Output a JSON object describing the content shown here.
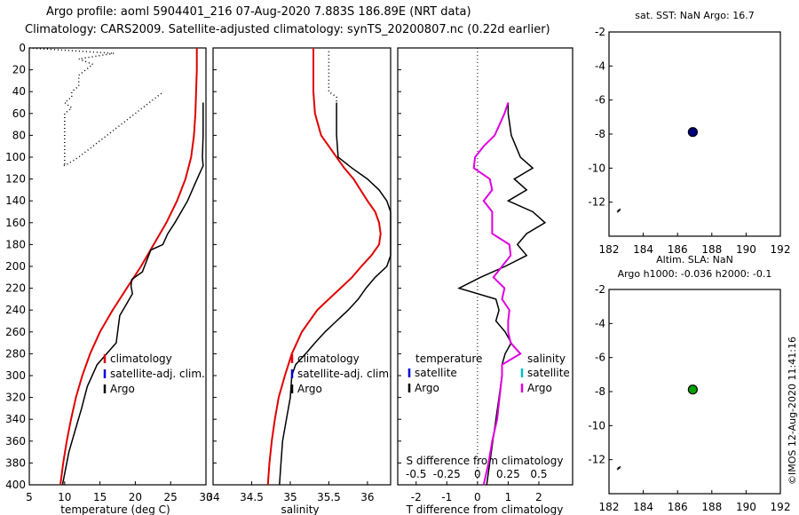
{
  "header": {
    "title_line1": "Argo profile: aoml 5904401_216 07-Aug-2020 7.883S 186.89E (NRT data)",
    "title_line2": "Climatology: CARS2009. Satellite-adjusted climatology: synTS_20200807.nc (0.22d earlier)"
  },
  "side_stamp": "©IMOS 12-Aug-2020 11:41:16",
  "colors": {
    "climatology": "#e00000",
    "satellite": "#0000e0",
    "argo": "#000000",
    "salinity": "#e000e0",
    "salinity_sat": "#00c0c0",
    "sst_dot": "#000080",
    "sla_dot": "#00a000"
  },
  "chart_data": [
    {
      "type": "line",
      "id": "temperature",
      "xlabel": "temperature (deg C)",
      "xlim": [
        5,
        30
      ],
      "xticks": [
        "5",
        "10",
        "15",
        "20",
        "25",
        "30"
      ],
      "ylim": [
        0,
        400
      ],
      "yticks": [
        "0",
        "20",
        "40",
        "60",
        "80",
        "100",
        "120",
        "140",
        "160",
        "180",
        "200",
        "220",
        "240",
        "260",
        "280",
        "300",
        "320",
        "340",
        "360",
        "380",
        "400"
      ],
      "legend": [
        "climatology",
        "satellite-adj. clim.",
        "Argo"
      ],
      "series": [
        {
          "name": "climatology",
          "depth": [
            0,
            20,
            40,
            60,
            80,
            100,
            120,
            140,
            160,
            180,
            200,
            220,
            240,
            260,
            280,
            300,
            320,
            340,
            360,
            380,
            400
          ],
          "values": [
            28.7,
            28.7,
            28.6,
            28.5,
            28.3,
            27.9,
            27.1,
            25.9,
            24.4,
            22.6,
            20.8,
            18.8,
            16.8,
            15.0,
            13.6,
            12.5,
            11.6,
            10.9,
            10.3,
            9.8,
            9.4
          ]
        },
        {
          "name": "Argo",
          "depth": [
            50,
            60,
            80,
            100,
            108,
            115,
            125,
            140,
            160,
            170,
            180,
            185,
            195,
            205,
            212,
            218,
            225,
            235,
            245,
            255,
            270,
            290,
            310,
            330,
            350,
            370,
            390,
            400
          ],
          "values": [
            29.6,
            29.6,
            29.6,
            29.5,
            29.6,
            29.1,
            28.4,
            27.4,
            25.6,
            24.6,
            23.9,
            22.2,
            21.6,
            21.0,
            19.5,
            19.4,
            19.6,
            18.7,
            17.8,
            17.6,
            17.3,
            14.6,
            13.2,
            12.4,
            11.5,
            10.6,
            10.0,
            9.7
          ]
        },
        {
          "name": "dotted",
          "depth": [
            0,
            5,
            10,
            15,
            20,
            25,
            30,
            35,
            40,
            45,
            50,
            55,
            60,
            70,
            80,
            90,
            100,
            106,
            108,
            106,
            100,
            90,
            80,
            70,
            60,
            50,
            40
          ],
          "values": [
            5,
            17,
            12,
            14,
            13,
            12,
            12,
            12,
            11,
            11,
            10,
            11,
            10,
            10,
            10,
            10,
            10,
            10,
            9.8,
            10.5,
            12,
            14,
            16,
            18,
            20,
            22,
            24
          ]
        }
      ]
    },
    {
      "type": "line",
      "id": "salinity",
      "xlabel": "salinity",
      "xlim": [
        34,
        36.3
      ],
      "xticks": [
        "34",
        "34.5",
        "35",
        "35.5",
        "36"
      ],
      "ylim": [
        0,
        400
      ],
      "legend": [
        "climatology",
        "satellite-adj. clim.",
        "Argo"
      ],
      "series": [
        {
          "name": "climatology",
          "depth": [
            0,
            20,
            40,
            60,
            80,
            90,
            100,
            110,
            120,
            140,
            150,
            160,
            170,
            180,
            190,
            200,
            210,
            220,
            230,
            240,
            260,
            280,
            300,
            320,
            340,
            360,
            380,
            400
          ],
          "values": [
            35.3,
            35.3,
            35.3,
            35.32,
            35.4,
            35.5,
            35.6,
            35.7,
            35.82,
            36.0,
            36.1,
            36.15,
            36.17,
            36.15,
            36.05,
            35.92,
            35.8,
            35.65,
            35.5,
            35.35,
            35.15,
            35.02,
            34.93,
            34.85,
            34.8,
            34.76,
            34.73,
            34.71
          ]
        },
        {
          "name": "Argo",
          "depth": [
            50,
            60,
            80,
            100,
            110,
            120,
            130,
            140,
            150,
            160,
            170,
            180,
            190,
            200,
            210,
            220,
            230,
            240,
            250,
            260,
            270,
            280,
            290,
            300,
            320,
            340,
            360,
            380,
            400
          ],
          "values": [
            35.6,
            35.6,
            35.6,
            35.62,
            35.8,
            36.0,
            36.15,
            36.25,
            36.3,
            36.3,
            36.3,
            36.3,
            36.3,
            36.25,
            36.1,
            35.98,
            35.88,
            35.75,
            35.6,
            35.45,
            35.32,
            35.2,
            35.07,
            35.02,
            35.0,
            34.95,
            34.9,
            34.88,
            34.86
          ]
        },
        {
          "name": "dotted",
          "depth": [
            3,
            40,
            45,
            50
          ],
          "values": [
            35.5,
            35.5,
            35.6,
            35.6
          ]
        }
      ]
    },
    {
      "type": "line",
      "id": "difference",
      "xlabel": "T difference from climatology",
      "xlim": [
        -2.6,
        3.1
      ],
      "xticks": [
        "-2",
        "-1",
        "0",
        "1",
        "2"
      ],
      "xlabel_top": "S difference from climatology",
      "xticks_top": [
        "-0.5",
        "-0.25",
        "0",
        "0.25",
        "0.5"
      ],
      "ylim": [
        0,
        400
      ],
      "legend_left": {
        "title": "temperature",
        "items": [
          "satellite",
          "Argo"
        ]
      },
      "legend_right": {
        "title": "salinity",
        "items": [
          "satellite",
          "Argo"
        ]
      },
      "series": [
        {
          "name": "T Argo",
          "depth": [
            50,
            60,
            80,
            100,
            110,
            120,
            130,
            140,
            150,
            160,
            170,
            180,
            190,
            200,
            210,
            220,
            230,
            240,
            250,
            260,
            270,
            280,
            290,
            300,
            320,
            340,
            360,
            380,
            400
          ],
          "values": [
            1.0,
            1.0,
            1.1,
            1.4,
            1.8,
            1.2,
            1.6,
            1.0,
            1.8,
            2.2,
            1.6,
            1.3,
            1.6,
            0.9,
            0.1,
            -0.6,
            0.6,
            0.7,
            0.6,
            0.9,
            1.1,
            0.9,
            0.8,
            0.8,
            0.7,
            0.6,
            0.5,
            0.4,
            0.3
          ]
        },
        {
          "name": "S Argo",
          "depth": [
            50,
            60,
            80,
            90,
            100,
            110,
            120,
            130,
            140,
            150,
            160,
            170,
            180,
            190,
            200,
            210,
            220,
            230,
            240,
            250,
            260,
            270,
            280,
            290,
            300,
            320,
            340,
            360,
            380,
            400
          ],
          "values": [
            0.25,
            0.22,
            0.14,
            0.05,
            -0.02,
            -0.03,
            0.1,
            0.12,
            0.05,
            0.12,
            0.12,
            0.12,
            0.26,
            0.27,
            0.2,
            0.13,
            0.22,
            0.2,
            0.26,
            0.25,
            0.25,
            0.27,
            0.35,
            0.2,
            0.2,
            0.18,
            0.16,
            0.12,
            0.09,
            0.05
          ]
        }
      ]
    },
    {
      "type": "scatter",
      "id": "sst",
      "title": "sat. SST: NaN Argo: 16.7",
      "xlim": [
        182,
        192
      ],
      "ylim": [
        -14,
        -2
      ],
      "xticks": [
        "182",
        "184",
        "186",
        "188",
        "190",
        "192"
      ],
      "yticks": [
        "-2",
        "-4",
        "-6",
        "-8",
        "-10",
        "-12"
      ],
      "points": [
        {
          "x": 186.89,
          "y": -7.88
        }
      ]
    },
    {
      "type": "scatter",
      "id": "sla",
      "title": "Altim. SLA: NaN",
      "subtitle": "Argo h1000: -0.036 h2000: -0.1",
      "xlim": [
        182,
        192
      ],
      "ylim": [
        -14,
        -2
      ],
      "xticks": [
        "182",
        "184",
        "186",
        "188",
        "190",
        "192"
      ],
      "yticks": [
        "-2",
        "-4",
        "-6",
        "-8",
        "-10",
        "-12"
      ],
      "points": [
        {
          "x": 186.89,
          "y": -7.88
        }
      ]
    }
  ]
}
